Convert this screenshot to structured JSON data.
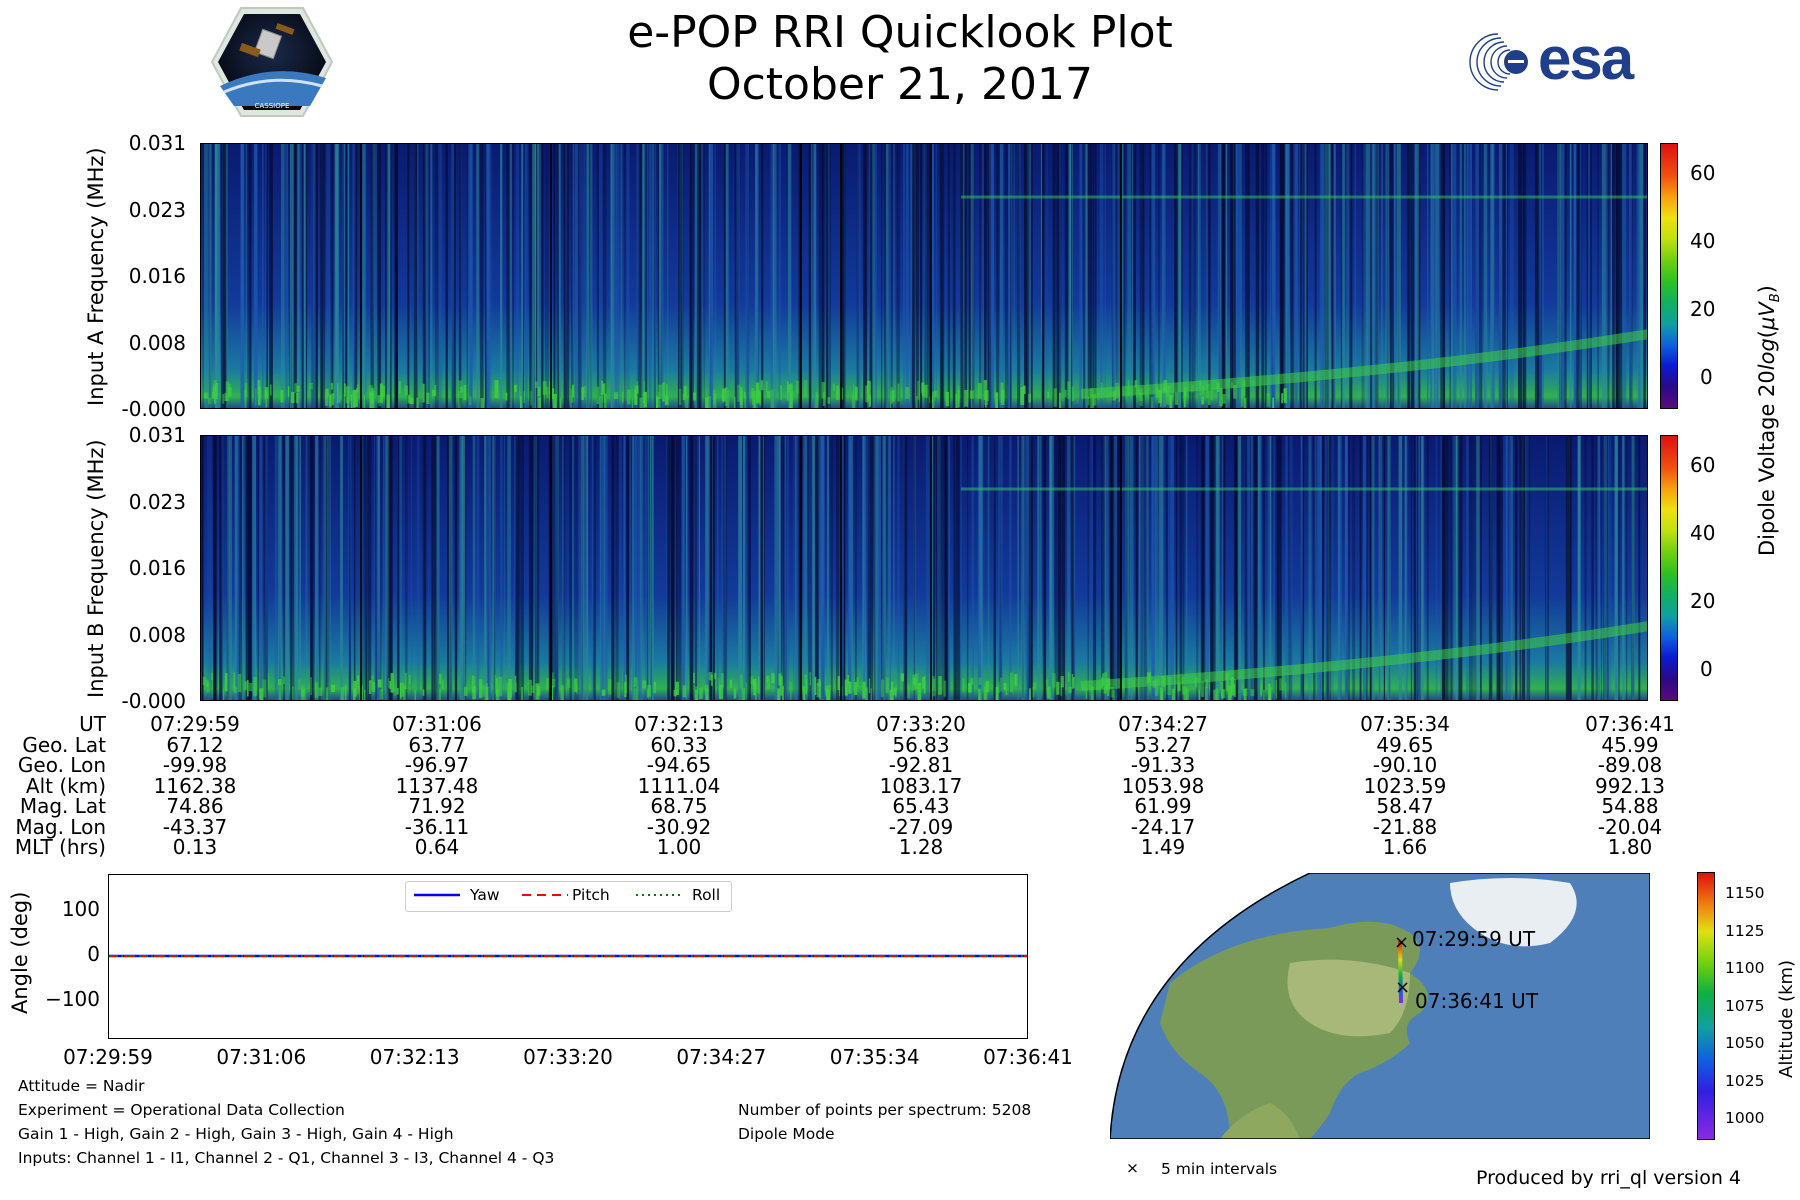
{
  "header": {
    "title": "e-POP RRI Quicklook Plot",
    "date": "October 21, 2017",
    "esa_text": "esa",
    "cassiope_text": "CASSIOPE"
  },
  "chart_data": [
    {
      "type": "heatmap",
      "name": "input-a-spectrogram",
      "ylabel": "Input A Frequency (MHz)",
      "yticks": [
        "0.031",
        "0.023",
        "0.016",
        "0.008",
        "-0.000"
      ],
      "colorbar_label": "Dipole Voltage 20log(μV_B)",
      "colorbar_ticks": [
        "60",
        "40",
        "20",
        "0"
      ]
    },
    {
      "type": "heatmap",
      "name": "input-b-spectrogram",
      "ylabel": "Input B Frequency (MHz)",
      "yticks": [
        "0.031",
        "0.023",
        "0.016",
        "0.008",
        "-0.000"
      ],
      "colorbar_ticks": [
        "60",
        "40",
        "20",
        "0"
      ]
    },
    {
      "type": "table",
      "name": "orbit-ephemeris",
      "row_labels": [
        "UT",
        "Geo. Lat",
        "Geo. Lon",
        "Alt (km)",
        "Mag. Lat",
        "Mag. Lon",
        "MLT (hrs)"
      ],
      "columns": [
        [
          "07:29:59",
          "67.12",
          "-99.98",
          "1162.38",
          "74.86",
          "-43.37",
          "0.13"
        ],
        [
          "07:31:06",
          "63.77",
          "-96.97",
          "1137.48",
          "71.92",
          "-36.11",
          "0.64"
        ],
        [
          "07:32:13",
          "60.33",
          "-94.65",
          "1111.04",
          "68.75",
          "-30.92",
          "1.00"
        ],
        [
          "07:33:20",
          "56.83",
          "-92.81",
          "1083.17",
          "65.43",
          "-27.09",
          "1.28"
        ],
        [
          "07:34:27",
          "53.27",
          "-91.33",
          "1053.98",
          "61.99",
          "-24.17",
          "1.49"
        ],
        [
          "07:35:34",
          "49.65",
          "-90.10",
          "1023.59",
          "58.47",
          "-21.88",
          "1.66"
        ],
        [
          "07:36:41",
          "45.99",
          "-89.08",
          "992.13",
          "54.88",
          "-20.04",
          "1.80"
        ]
      ]
    },
    {
      "type": "line",
      "name": "attitude",
      "ylabel": "Angle (deg)",
      "ylim": [
        -180,
        180
      ],
      "yticks": [
        "100",
        "0",
        "−100"
      ],
      "x": [
        "07:29:59",
        "07:31:06",
        "07:32:13",
        "07:33:20",
        "07:34:27",
        "07:35:34",
        "07:36:41"
      ],
      "series": [
        {
          "name": "Yaw",
          "values": [
            0,
            0,
            0,
            0,
            0,
            0,
            0
          ],
          "color": "#0000ff",
          "style": "solid"
        },
        {
          "name": "Pitch",
          "values": [
            0,
            0,
            0,
            0,
            0,
            0,
            0
          ],
          "color": "#ff0000",
          "style": "dashed"
        },
        {
          "name": "Roll",
          "values": [
            0,
            0,
            0,
            0,
            0,
            0,
            0
          ],
          "color": "#008000",
          "style": "dotted"
        }
      ],
      "legend": "top-center"
    },
    {
      "type": "scatter",
      "name": "ground-track-map",
      "start_label": "07:29:59 UT",
      "end_label": "07:36:41 UT",
      "marker_legend": "5 min intervals",
      "colorbar_label": "Altitude (km)",
      "colorbar_ticks": [
        "1150",
        "1125",
        "1100",
        "1075",
        "1050",
        "1025",
        "1000"
      ]
    }
  ],
  "footer": {
    "attitude": "Attitude = Nadir",
    "experiment": "Experiment = Operational Data Collection",
    "gain": "Gain 1 - High, Gain 2 - High, Gain 3 - High, Gain 4 - High",
    "inputs": "Inputs: Channel 1 - I1, Channel 2 - Q1, Channel 3 - I3, Channel 4 - Q3",
    "points": "Number of points per spectrum: 5208",
    "mode": "Dipole Mode",
    "produced": "Produced by rri_ql version 4"
  },
  "colors": {
    "background": "#ffffff",
    "spectrogram_base": "#0a1a8a",
    "ocean": "#4a7ab5"
  }
}
